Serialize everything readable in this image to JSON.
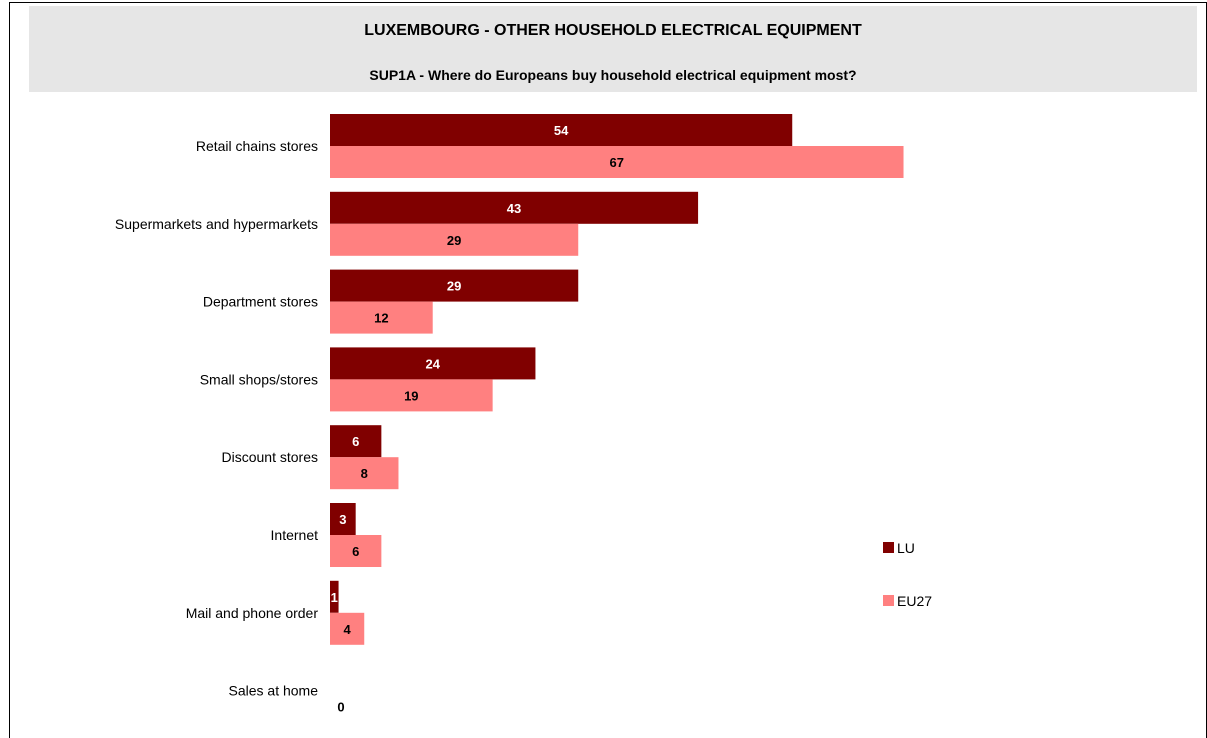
{
  "chart_data": {
    "type": "bar",
    "orientation": "horizontal",
    "title": "LUXEMBOURG - OTHER HOUSEHOLD ELECTRICAL EQUIPMENT",
    "subtitle": "SUP1A - Where do Europeans buy household electrical equipment most?",
    "categories": [
      "Retail chains stores",
      "Supermarkets and hypermarkets",
      "Department stores",
      "Small shops/stores",
      "Discount stores",
      "Internet",
      "Mail and phone order",
      "Sales at home"
    ],
    "series": [
      {
        "name": "LU",
        "color": "#800000",
        "label_color": "#ffffff",
        "values": [
          54,
          43,
          29,
          24,
          6,
          3,
          1,
          null
        ]
      },
      {
        "name": "EU27",
        "color": "#ff8080",
        "label_color": "#000000",
        "values": [
          67,
          29,
          12,
          19,
          8,
          6,
          4,
          0
        ]
      }
    ],
    "xlim": [
      0,
      100
    ],
    "grid": false,
    "legend_position": "right"
  }
}
